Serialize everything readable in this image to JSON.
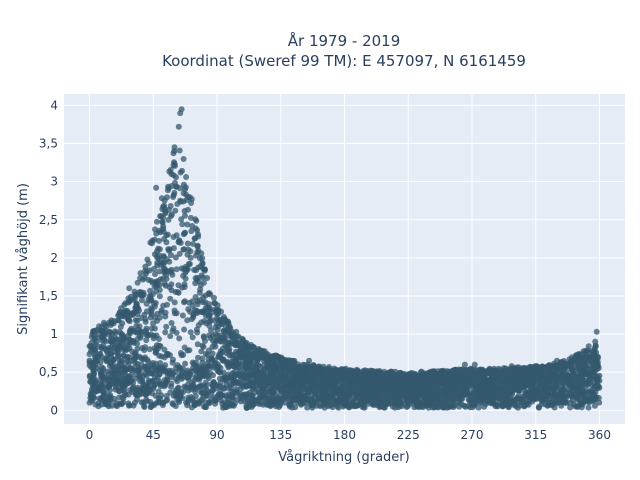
{
  "chart_data": {
    "type": "scatter",
    "title_line1": "År 1979 - 2019",
    "title_line2": "Koordinat (Sweref 99 TM): E 457097, N 6161459",
    "xlabel": "Vågriktning (grader)",
    "ylabel": "Signifikant våghöjd (m)",
    "xlim": [
      -18,
      378
    ],
    "ylim": [
      -0.18,
      4.15
    ],
    "x_ticks": [
      0,
      45,
      90,
      135,
      180,
      225,
      270,
      315,
      360
    ],
    "x_tick_labels": [
      "0",
      "45",
      "90",
      "135",
      "180",
      "225",
      "270",
      "315",
      "360"
    ],
    "y_ticks": [
      0,
      0.5,
      1,
      1.5,
      2,
      2.5,
      3,
      3.5,
      4
    ],
    "y_tick_labels": [
      "0",
      "0,5",
      "1",
      "1,5",
      "2",
      "2,5",
      "3",
      "3,5",
      "4"
    ],
    "grid": true,
    "marker_color": "#34586e",
    "background_color": "#e5ecf6",
    "upper_envelope": {
      "x": [
        0,
        10,
        20,
        30,
        40,
        45,
        50,
        55,
        60,
        63,
        65,
        68,
        70,
        75,
        80,
        85,
        90,
        95,
        100,
        110,
        120,
        135,
        150,
        165,
        180,
        200,
        225,
        250,
        270,
        290,
        315,
        330,
        340,
        350,
        355,
        360
      ],
      "y": [
        1.0,
        1.15,
        1.3,
        1.55,
        1.95,
        2.3,
        2.7,
        3.1,
        3.45,
        3.5,
        3.4,
        3.2,
        2.95,
        2.55,
        2.0,
        1.6,
        1.4,
        1.25,
        1.1,
        0.9,
        0.8,
        0.7,
        0.62,
        0.58,
        0.55,
        0.52,
        0.5,
        0.52,
        0.55,
        0.55,
        0.58,
        0.62,
        0.7,
        0.8,
        0.9,
        0.95
      ]
    },
    "outliers": [
      {
        "x": 65,
        "y": 3.95
      },
      {
        "x": 64,
        "y": 3.9
      },
      {
        "x": 63,
        "y": 3.72
      },
      {
        "x": 60,
        "y": 3.45
      },
      {
        "x": 47,
        "y": 2.92
      },
      {
        "x": 43,
        "y": 2.2
      },
      {
        "x": 36,
        "y": 1.8
      },
      {
        "x": 28,
        "y": 1.6
      },
      {
        "x": 155,
        "y": 0.65
      },
      {
        "x": 265,
        "y": 0.6
      },
      {
        "x": 272,
        "y": 0.6
      },
      {
        "x": 298,
        "y": 0.58
      },
      {
        "x": 330,
        "y": 0.65
      },
      {
        "x": 358,
        "y": 1.03
      }
    ]
  }
}
